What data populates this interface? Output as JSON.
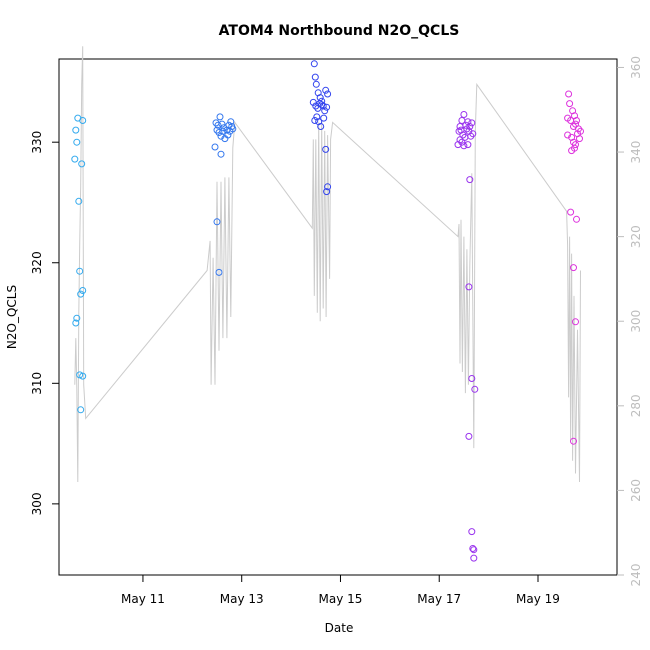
{
  "colors": {
    "line": "#cccccc",
    "right_axis": "#bdbdbd",
    "frame": "#000000"
  },
  "chart_data": {
    "type": "scatter",
    "title": "ATOM4 Northbound N2O_QCLS",
    "xlabel": "Date",
    "ylabel": "N2O_QCLS",
    "x_axis": {
      "unit": "days (May 2018)",
      "range": [
        9.3,
        20.6
      ],
      "ticks": [
        11,
        13,
        15,
        17,
        19
      ],
      "tick_labels": [
        "May 11",
        "May 13",
        "May 15",
        "May 17",
        "May 19"
      ]
    },
    "y_axis_left": {
      "range": [
        294.1,
        336.9
      ],
      "ticks": [
        300,
        310,
        320,
        330
      ],
      "tick_labels": [
        "300",
        "310",
        "320",
        "330"
      ]
    },
    "y_axis_right": {
      "range": [
        240,
        362
      ],
      "ticks": [
        240,
        260,
        280,
        300,
        320,
        340,
        360
      ],
      "tick_labels": [
        "240",
        "260",
        "280",
        "300",
        "320",
        "340",
        "360"
      ]
    },
    "grid": false,
    "legend": "none",
    "series": [
      {
        "kind": "points",
        "color": "#33aaee",
        "points": [
          [
            9.68,
            332.0
          ],
          [
            9.64,
            331.0
          ],
          [
            9.66,
            330.0
          ],
          [
            9.62,
            328.6
          ],
          [
            9.78,
            331.8
          ],
          [
            9.76,
            328.2
          ],
          [
            9.7,
            325.1
          ],
          [
            9.72,
            319.3
          ],
          [
            9.74,
            317.4
          ],
          [
            9.78,
            317.7
          ],
          [
            9.66,
            315.4
          ],
          [
            9.64,
            315.0
          ],
          [
            9.72,
            310.7
          ],
          [
            9.78,
            310.6
          ],
          [
            9.74,
            307.8
          ]
        ]
      },
      {
        "kind": "points",
        "color": "#3377ee",
        "points": [
          [
            12.48,
            331.6
          ],
          [
            12.52,
            331.4
          ],
          [
            12.56,
            332.1
          ],
          [
            12.6,
            331.5
          ],
          [
            12.64,
            331.2
          ],
          [
            12.7,
            331.0
          ],
          [
            12.74,
            331.4
          ],
          [
            12.78,
            331.7
          ],
          [
            12.82,
            331.1
          ],
          [
            12.5,
            331.0
          ],
          [
            12.54,
            330.8
          ],
          [
            12.58,
            330.5
          ],
          [
            12.62,
            330.9
          ],
          [
            12.66,
            330.3
          ],
          [
            12.72,
            330.6
          ],
          [
            12.76,
            330.9
          ],
          [
            12.8,
            331.3
          ],
          [
            12.46,
            329.6
          ],
          [
            12.58,
            329.0
          ],
          [
            12.5,
            323.4
          ],
          [
            12.54,
            319.2
          ]
        ]
      },
      {
        "kind": "points",
        "color": "#3344ee",
        "points": [
          [
            14.47,
            336.5
          ],
          [
            14.49,
            335.4
          ],
          [
            14.51,
            334.8
          ],
          [
            14.55,
            334.1
          ],
          [
            14.59,
            333.7
          ],
          [
            14.62,
            333.4
          ],
          [
            14.65,
            333.0
          ],
          [
            14.7,
            334.3
          ],
          [
            14.74,
            334.0
          ],
          [
            14.45,
            333.3
          ],
          [
            14.5,
            333.0
          ],
          [
            14.54,
            332.8
          ],
          [
            14.58,
            333.2
          ],
          [
            14.62,
            333.1
          ],
          [
            14.68,
            332.6
          ],
          [
            14.72,
            332.9
          ],
          [
            14.48,
            331.8
          ],
          [
            14.52,
            332.1
          ],
          [
            14.56,
            331.7
          ],
          [
            14.6,
            331.3
          ],
          [
            14.66,
            332.0
          ],
          [
            14.7,
            329.4
          ],
          [
            14.74,
            326.3
          ],
          [
            14.72,
            325.9
          ]
        ]
      },
      {
        "kind": "points",
        "color": "#9933ee",
        "points": [
          [
            17.42,
            331.3
          ],
          [
            17.46,
            331.8
          ],
          [
            17.5,
            332.3
          ],
          [
            17.54,
            331.4
          ],
          [
            17.58,
            331.7
          ],
          [
            17.62,
            331.3
          ],
          [
            17.66,
            331.6
          ],
          [
            17.4,
            330.9
          ],
          [
            17.44,
            331.0
          ],
          [
            17.48,
            330.6
          ],
          [
            17.52,
            330.4
          ],
          [
            17.56,
            331.1
          ],
          [
            17.6,
            330.9
          ],
          [
            17.64,
            330.5
          ],
          [
            17.68,
            330.7
          ],
          [
            17.38,
            329.8
          ],
          [
            17.42,
            330.2
          ],
          [
            17.46,
            330.0
          ],
          [
            17.5,
            329.7
          ],
          [
            17.58,
            329.8
          ],
          [
            17.62,
            326.9
          ],
          [
            17.6,
            318.0
          ],
          [
            17.66,
            310.4
          ],
          [
            17.72,
            309.5
          ],
          [
            17.6,
            305.6
          ],
          [
            17.66,
            297.7
          ],
          [
            17.68,
            296.3
          ],
          [
            17.7,
            296.2
          ],
          [
            17.7,
            295.5
          ]
        ]
      },
      {
        "kind": "points",
        "color": "#dd33dd",
        "points": [
          [
            19.62,
            334.0
          ],
          [
            19.64,
            333.2
          ],
          [
            19.7,
            332.6
          ],
          [
            19.74,
            332.2
          ],
          [
            19.78,
            331.8
          ],
          [
            19.82,
            331.1
          ],
          [
            19.86,
            330.9
          ],
          [
            19.6,
            332.0
          ],
          [
            19.66,
            331.8
          ],
          [
            19.72,
            331.3
          ],
          [
            19.76,
            331.5
          ],
          [
            19.8,
            330.7
          ],
          [
            19.84,
            330.3
          ],
          [
            19.6,
            330.6
          ],
          [
            19.68,
            330.4
          ],
          [
            19.72,
            330.0
          ],
          [
            19.76,
            329.8
          ],
          [
            19.68,
            329.3
          ],
          [
            19.74,
            329.5
          ],
          [
            19.66,
            324.2
          ],
          [
            19.78,
            323.6
          ],
          [
            19.72,
            319.6
          ],
          [
            19.76,
            315.1
          ],
          [
            19.72,
            305.2
          ]
        ]
      },
      {
        "kind": "line",
        "color": "#cccccc",
        "axis": "right",
        "points": [
          [
            9.62,
            285.0
          ],
          [
            9.64,
            296.0
          ],
          [
            9.66,
            284.0
          ],
          [
            9.68,
            262.0
          ],
          [
            9.7,
            302.0
          ],
          [
            9.72,
            318.0
          ],
          [
            9.74,
            332.0
          ],
          [
            9.76,
            356.0
          ],
          [
            9.78,
            365.0
          ],
          [
            9.8,
            285.0
          ],
          [
            9.84,
            277.0
          ],
          [
            12.3,
            312.0
          ],
          [
            12.36,
            319.0
          ],
          [
            12.38,
            285.0
          ],
          [
            12.42,
            315.0
          ],
          [
            12.46,
            285.0
          ],
          [
            12.5,
            333.0
          ],
          [
            12.54,
            293.0
          ],
          [
            12.58,
            333.0
          ],
          [
            12.62,
            296.0
          ],
          [
            12.66,
            334.0
          ],
          [
            12.7,
            296.0
          ],
          [
            12.74,
            334.0
          ],
          [
            12.78,
            301.0
          ],
          [
            12.82,
            341.0
          ],
          [
            12.86,
            347.0
          ],
          [
            14.43,
            322.0
          ],
          [
            14.45,
            343.0
          ],
          [
            14.47,
            306.0
          ],
          [
            14.5,
            343.0
          ],
          [
            14.53,
            302.0
          ],
          [
            14.56,
            347.0
          ],
          [
            14.59,
            300.0
          ],
          [
            14.62,
            347.0
          ],
          [
            14.65,
            303.0
          ],
          [
            14.68,
            345.0
          ],
          [
            14.71,
            301.0
          ],
          [
            14.74,
            344.0
          ],
          [
            14.78,
            310.0
          ],
          [
            14.8,
            343.0
          ],
          [
            14.84,
            347.0
          ],
          [
            17.38,
            320.0
          ],
          [
            17.4,
            323.0
          ],
          [
            17.42,
            290.0
          ],
          [
            17.44,
            324.0
          ],
          [
            17.47,
            288.0
          ],
          [
            17.5,
            320.0
          ],
          [
            17.53,
            283.0
          ],
          [
            17.56,
            317.0
          ],
          [
            17.59,
            285.0
          ],
          [
            17.62,
            313.0
          ],
          [
            17.66,
            335.0
          ],
          [
            17.7,
            270.0
          ],
          [
            17.73,
            345.0
          ],
          [
            17.76,
            356.0
          ],
          [
            19.58,
            326.0
          ],
          [
            19.6,
            318.0
          ],
          [
            19.62,
            282.0
          ],
          [
            19.64,
            320.0
          ],
          [
            19.66,
            272.0
          ],
          [
            19.68,
            316.0
          ],
          [
            19.7,
            267.0
          ],
          [
            19.73,
            306.0
          ],
          [
            19.76,
            264.0
          ],
          [
            19.8,
            298.0
          ],
          [
            19.84,
            262.0
          ],
          [
            19.86,
            312.0
          ]
        ]
      }
    ]
  }
}
